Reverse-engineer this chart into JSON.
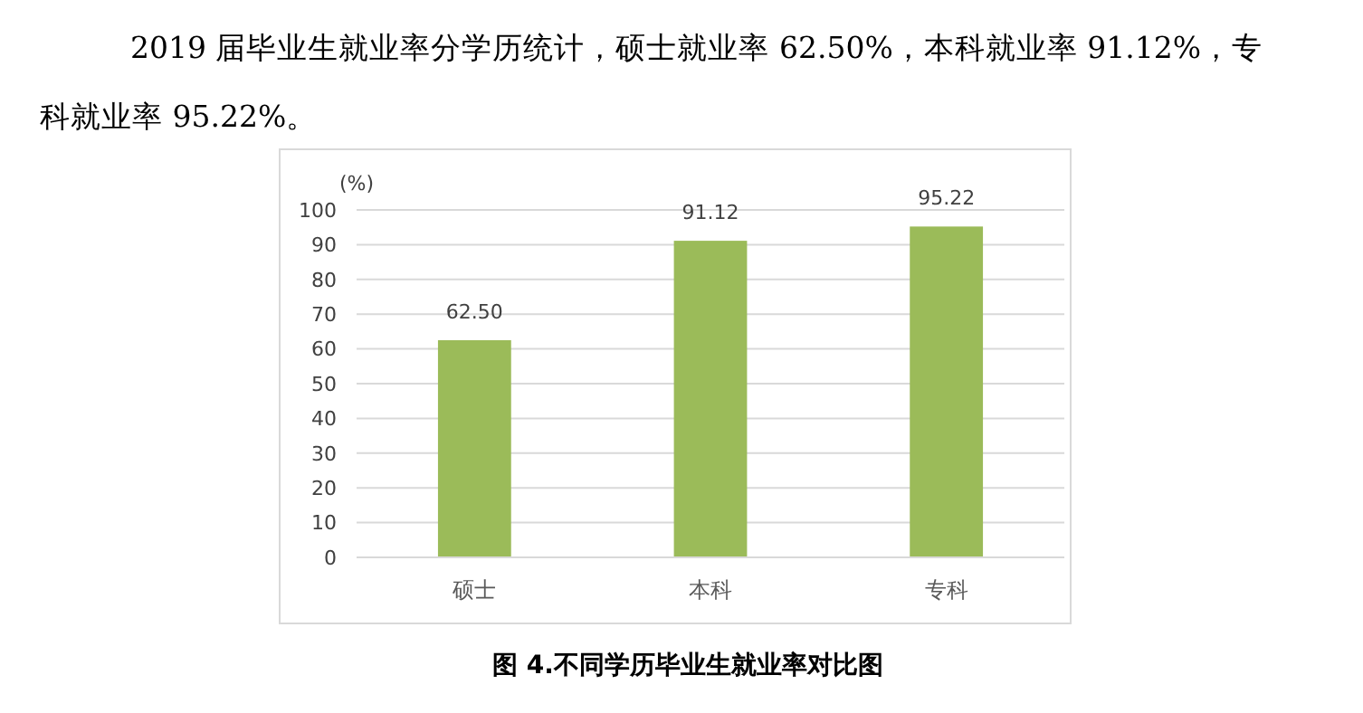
{
  "chart_data": {
    "type": "bar",
    "title": "图 4.不同学历毕业生就业率对比图",
    "annotations": [
      "2019 届毕业生就业率分学历统计，硕士就业率 62.50%，本科就业率 91.12%，专科就业率 95.22%。"
    ],
    "ylabel": "(%)",
    "categories": [
      "硕士",
      "本科",
      "专科"
    ],
    "values": [
      62.5,
      91.12,
      95.22
    ],
    "value_labels": [
      "62.50",
      "91.12",
      "95.22"
    ],
    "color": "#9bbb59",
    "ylim": [
      0,
      100
    ],
    "yticks": [
      0,
      10,
      20,
      30,
      40,
      50,
      60,
      70,
      80,
      90,
      100
    ],
    "grid": "y"
  }
}
